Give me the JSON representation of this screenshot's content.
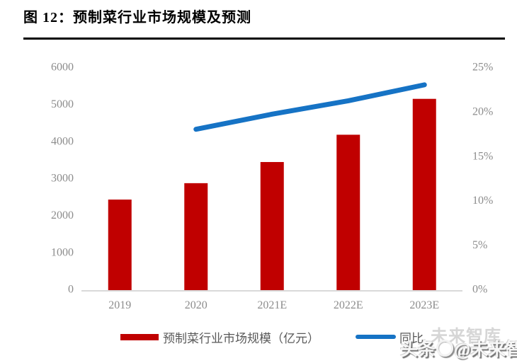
{
  "header": {
    "title": "图 12：预制菜行业市场规模及预测"
  },
  "chart_data": {
    "type": "bar",
    "subtype": "bar-with-line-dual-axis",
    "title": "预制菜行业市场规模及预测",
    "categories": [
      "2019",
      "2020",
      "2021E",
      "2022E",
      "2023E"
    ],
    "series": [
      {
        "name": "预制菜行业市场规模（亿元）",
        "type": "bar",
        "axis": "left",
        "color": "#c00000",
        "values": [
          2445,
          2888,
          3459,
          4196,
          5165
        ]
      },
      {
        "name": "同比",
        "type": "line",
        "axis": "right",
        "color": "#1673c5",
        "unit": "%",
        "values": [
          null,
          18.1,
          19.8,
          21.3,
          23.1
        ]
      }
    ],
    "left_axis": {
      "min": 0,
      "max": 6000,
      "step": 1000,
      "ticks": [
        "0",
        "1000",
        "2000",
        "3000",
        "4000",
        "5000",
        "6000"
      ]
    },
    "right_axis": {
      "min": 0,
      "max": 25,
      "step": 5,
      "ticks": [
        "0%",
        "5%",
        "10%",
        "15%",
        "20%",
        "25%"
      ]
    },
    "grid": false,
    "legend_position": "bottom"
  },
  "legend": {
    "bar_label": "预制菜行业市场规模（亿元）",
    "line_label": "同比"
  },
  "watermark": {
    "ghost": "未来智库",
    "prefix": "头条",
    "suffix": "@未来智库"
  },
  "colors": {
    "bar": "#c00000",
    "line": "#1673c5",
    "axis_text": "#8c8c8c",
    "baseline": "#d9d9d9",
    "title_text": "#000000"
  }
}
